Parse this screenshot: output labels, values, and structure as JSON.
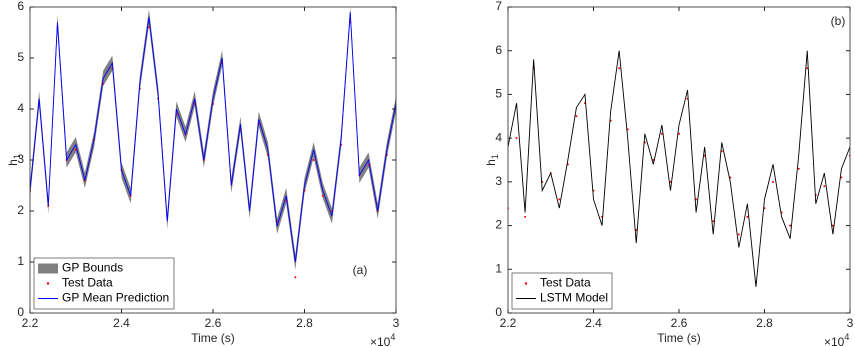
{
  "chart_data": [
    {
      "type": "line",
      "annotation": "(a)",
      "x_label": "Time (s)",
      "y_label": "h",
      "y_label_sub": "1",
      "x_scale_base": "×10",
      "x_scale_exponent": "4",
      "xlim": [
        2.2,
        3
      ],
      "xticks": [
        2.2,
        2.4,
        2.6,
        2.8,
        3
      ],
      "ylim": [
        0,
        6
      ],
      "yticks": [
        0,
        1,
        2,
        3,
        4,
        5,
        6
      ],
      "legend": "lower-left",
      "x": [
        2.2,
        2.22,
        2.24,
        2.26,
        2.28,
        2.3,
        2.32,
        2.34,
        2.36,
        2.38,
        2.4,
        2.42,
        2.44,
        2.46,
        2.48,
        2.5,
        2.52,
        2.54,
        2.56,
        2.58,
        2.6,
        2.62,
        2.64,
        2.66,
        2.68,
        2.7,
        2.72,
        2.74,
        2.76,
        2.78,
        2.8,
        2.82,
        2.84,
        2.86,
        2.88,
        2.9,
        2.92,
        2.94,
        2.96,
        2.98,
        3
      ],
      "series": [
        {
          "name": "GP Bounds",
          "kind": "band",
          "color": "#808080",
          "lower": [
            2.25,
            4.05,
            1.95,
            5.55,
            2.85,
            3.15,
            2.45,
            3.25,
            4.45,
            4.75,
            2.65,
            2.15,
            4.35,
            5.65,
            4.15,
            1.65,
            3.85,
            3.35,
            4.05,
            2.85,
            4.05,
            4.85,
            2.35,
            3.55,
            1.85,
            3.65,
            3.05,
            1.55,
            2.15,
            0.85,
            2.35,
            3.05,
            2.25,
            1.75,
            3.25,
            5.75,
            2.55,
            2.85,
            1.85,
            3.05,
            3.95
          ],
          "upper": [
            2.55,
            4.35,
            2.25,
            5.85,
            3.15,
            3.45,
            2.75,
            3.55,
            4.75,
            5.05,
            2.95,
            2.45,
            4.65,
            5.95,
            4.45,
            1.95,
            4.15,
            3.65,
            4.35,
            3.15,
            4.35,
            5.15,
            2.65,
            3.85,
            2.15,
            3.95,
            3.35,
            1.85,
            2.45,
            1.15,
            2.65,
            3.35,
            2.55,
            2.05,
            3.55,
            6.0,
            2.85,
            3.15,
            2.15,
            3.35,
            4.25
          ]
        },
        {
          "name": "Test Data",
          "kind": "dots",
          "color": "#ff0000",
          "values": [
            2.4,
            4.1,
            2.1,
            5.6,
            3.0,
            3.2,
            2.6,
            3.4,
            4.5,
            4.8,
            2.8,
            2.3,
            4.4,
            5.6,
            4.2,
            1.9,
            3.9,
            3.5,
            4.1,
            3.0,
            4.1,
            4.9,
            2.6,
            3.6,
            2.1,
            3.7,
            3.1,
            1.8,
            2.2,
            0.7,
            2.4,
            3.0,
            2.3,
            2.0,
            3.3,
            5.7,
            2.7,
            2.9,
            2.0,
            3.1,
            4.0
          ]
        },
        {
          "name": "GP Mean Prediction",
          "kind": "line",
          "color": "#0000ff",
          "values": [
            2.4,
            4.2,
            2.1,
            5.7,
            3.0,
            3.3,
            2.6,
            3.4,
            4.6,
            4.9,
            2.8,
            2.3,
            4.5,
            5.8,
            4.3,
            1.8,
            4.0,
            3.5,
            4.2,
            3.0,
            4.2,
            5.0,
            2.5,
            3.7,
            2.0,
            3.8,
            3.2,
            1.7,
            2.3,
            1.0,
            2.5,
            3.2,
            2.4,
            1.9,
            3.4,
            5.9,
            2.7,
            3.0,
            2.0,
            3.2,
            4.1
          ]
        }
      ]
    },
    {
      "type": "line",
      "annotation": "(b)",
      "x_label": "Time (s)",
      "y_label": "h",
      "y_label_sub": "1",
      "x_scale_base": "×10",
      "x_scale_exponent": "4",
      "xlim": [
        2.2,
        3
      ],
      "xticks": [
        2.2,
        2.4,
        2.6,
        2.8,
        3
      ],
      "ylim": [
        0,
        7
      ],
      "yticks": [
        0,
        1,
        2,
        3,
        4,
        5,
        6,
        7
      ],
      "legend": "lower-left",
      "x": [
        2.2,
        2.22,
        2.24,
        2.26,
        2.28,
        2.3,
        2.32,
        2.34,
        2.36,
        2.38,
        2.4,
        2.42,
        2.44,
        2.46,
        2.48,
        2.5,
        2.52,
        2.54,
        2.56,
        2.58,
        2.6,
        2.62,
        2.64,
        2.66,
        2.68,
        2.7,
        2.72,
        2.74,
        2.76,
        2.78,
        2.8,
        2.82,
        2.84,
        2.86,
        2.88,
        2.9,
        2.92,
        2.94,
        2.96,
        2.98,
        3
      ],
      "series": [
        {
          "name": "Test Data",
          "kind": "dots",
          "color": "#ff0000",
          "values": [
            2.4,
            4.0,
            2.2,
            5.6,
            3.0,
            3.2,
            2.6,
            3.4,
            4.5,
            4.8,
            2.8,
            2.2,
            4.4,
            5.6,
            4.2,
            1.9,
            3.9,
            3.5,
            4.1,
            3.0,
            4.1,
            4.9,
            2.6,
            3.6,
            2.1,
            3.7,
            3.1,
            1.8,
            2.2,
            0.7,
            2.4,
            3.0,
            2.3,
            2.0,
            3.3,
            5.6,
            2.7,
            2.9,
            2.0,
            3.1,
            3.6
          ]
        },
        {
          "name": "LSTM Model",
          "kind": "line",
          "color": "#000000",
          "values": [
            3.8,
            4.8,
            2.3,
            5.8,
            2.8,
            3.2,
            2.4,
            3.5,
            4.7,
            5.0,
            2.6,
            2.0,
            4.6,
            6.0,
            4.0,
            1.6,
            4.1,
            3.4,
            4.3,
            2.8,
            4.3,
            5.1,
            2.3,
            3.8,
            1.8,
            3.9,
            3.0,
            1.5,
            2.5,
            0.6,
            2.6,
            3.4,
            2.2,
            1.7,
            3.6,
            6.0,
            2.5,
            3.2,
            1.8,
            3.3,
            3.8
          ]
        }
      ]
    }
  ]
}
